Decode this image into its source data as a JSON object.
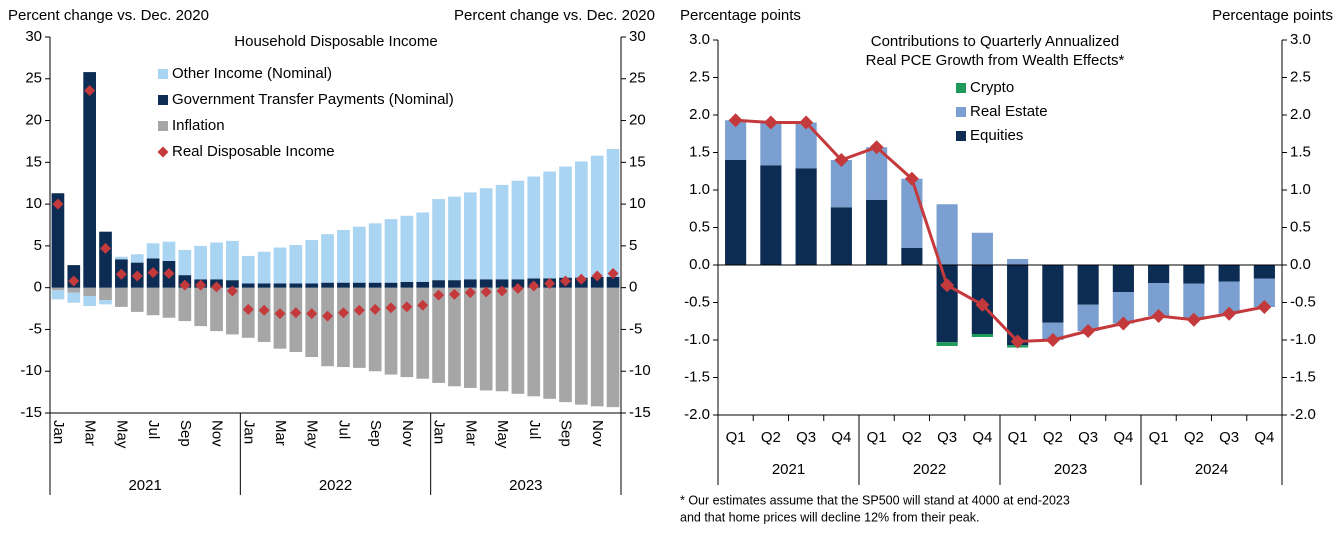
{
  "chart_data": [
    {
      "type": "bar",
      "title": "Household Disposable Income",
      "ylabel": "Percent change vs. Dec. 2020",
      "y2label": "Percent change vs. Dec. 2020",
      "categories": [
        "Jan",
        null,
        "Mar",
        null,
        "May",
        null,
        "Jul",
        null,
        "Sep",
        null,
        "Nov",
        null,
        "Jan",
        null,
        "Mar",
        null,
        "May",
        null,
        "Jul",
        null,
        "Sep",
        null,
        "Nov",
        null,
        "Jan",
        null,
        "Mar",
        null,
        "May",
        null,
        "Jul",
        null,
        "Sep",
        null,
        "Nov",
        null
      ],
      "x_groups": [
        "2021",
        "2022",
        "2023"
      ],
      "ylim": [
        -15,
        30
      ],
      "yticks": [
        -15,
        -10,
        -5,
        0,
        5,
        10,
        15,
        20,
        25,
        30
      ],
      "y2lim": [
        -15,
        30
      ],
      "y2ticks": [
        -15,
        -10,
        -5,
        0,
        5,
        10,
        15,
        20,
        25,
        30
      ],
      "series": [
        {
          "name": "Other Income (Nominal)",
          "color": "#a9d4f2",
          "values": [
            -1.1,
            -1.2,
            -1.2,
            -0.5,
            0.3,
            1.0,
            1.8,
            2.3,
            3.0,
            4.0,
            4.4,
            4.7,
            3.3,
            3.8,
            4.3,
            4.6,
            5.2,
            5.8,
            6.3,
            6.7,
            7.1,
            7.6,
            7.9,
            8.3,
            9.7,
            10.0,
            10.4,
            10.9,
            11.3,
            11.8,
            12.2,
            12.8,
            13.3,
            13.9,
            14.5,
            15.3
          ]
        },
        {
          "name": "Government Transfer Payments (Nominal)",
          "color": "#0c2c54",
          "values": [
            11.3,
            2.7,
            25.8,
            6.7,
            3.4,
            3.0,
            3.5,
            3.2,
            1.5,
            1.0,
            1.0,
            0.9,
            0.5,
            0.5,
            0.5,
            0.5,
            0.5,
            0.6,
            0.6,
            0.6,
            0.6,
            0.6,
            0.7,
            0.7,
            0.9,
            0.9,
            1.0,
            1.0,
            1.0,
            1.0,
            1.1,
            1.1,
            1.2,
            1.2,
            1.3,
            1.3
          ]
        },
        {
          "name": "Inflation",
          "color": "#a6a6a6",
          "values": [
            -0.3,
            -0.6,
            -1.0,
            -1.5,
            -2.3,
            -2.9,
            -3.3,
            -3.6,
            -4.0,
            -4.6,
            -5.2,
            -5.6,
            -6.0,
            -6.5,
            -7.3,
            -7.7,
            -8.3,
            -9.4,
            -9.5,
            -9.6,
            -10.0,
            -10.4,
            -10.7,
            -10.9,
            -11.4,
            -11.8,
            -12.0,
            -12.3,
            -12.4,
            -12.7,
            -13.0,
            -13.3,
            -13.7,
            -14.0,
            -14.2,
            -14.3
          ]
        },
        {
          "name": "Real Disposable Income",
          "color": "#c43a3c",
          "type": "scatter",
          "marker": "diamond",
          "values": [
            10.0,
            0.8,
            23.6,
            4.7,
            1.6,
            1.4,
            1.8,
            1.7,
            0.3,
            0.3,
            0.1,
            -0.4,
            -2.6,
            -2.7,
            -3.1,
            -3.0,
            -3.1,
            -3.4,
            -3.0,
            -2.7,
            -2.6,
            -2.4,
            -2.3,
            -2.1,
            -0.9,
            -0.8,
            -0.6,
            -0.5,
            -0.4,
            -0.1,
            0.2,
            0.5,
            0.8,
            1.0,
            1.4,
            1.7
          ]
        }
      ]
    },
    {
      "type": "bar",
      "title": [
        "Contributions to Quarterly Annualized",
        "Real PCE Growth from Wealth Effects*"
      ],
      "ylabel": "Percentage points",
      "y2label": "Percentage points",
      "categories": [
        "Q1",
        "Q2",
        "Q3",
        "Q4",
        "Q1",
        "Q2",
        "Q3",
        "Q4",
        "Q1",
        "Q2",
        "Q3",
        "Q4",
        "Q1",
        "Q2",
        "Q3",
        "Q4"
      ],
      "x_groups": [
        "2021",
        "2022",
        "2023",
        "2024"
      ],
      "ylim": [
        -2,
        3
      ],
      "yticks": [
        {
          "value": -2,
          "label": "-2.0"
        },
        -1.5,
        {
          "value": -1,
          "label": "-1.0"
        },
        -0.5,
        {
          "value": 0,
          "label": "0.0"
        },
        0.5,
        {
          "value": 1,
          "label": "1.0"
        },
        1.5,
        {
          "value": 2,
          "label": "2.0"
        },
        2.5,
        {
          "value": 3,
          "label": "3.0"
        }
      ],
      "y2lim": [
        -2,
        3
      ],
      "y2ticks": [
        {
          "value": -2,
          "label": "-2.0"
        },
        -1.5,
        {
          "value": -1,
          "label": "-1.0"
        },
        -0.5,
        {
          "value": 0,
          "label": "0.0"
        },
        0.5,
        {
          "value": 1,
          "label": "1.0"
        },
        1.5,
        {
          "value": 2,
          "label": "2.0"
        },
        2.5,
        {
          "value": 3,
          "label": "3.0"
        }
      ],
      "series": [
        {
          "name": "Crypto",
          "color": "#1e9a5b",
          "values": [
            0,
            0,
            0,
            0,
            0,
            0,
            -0.05,
            -0.04,
            -0.03,
            0,
            0,
            0,
            0,
            0,
            0,
            0
          ]
        },
        {
          "name": "Real Estate",
          "color": "#7b9fd0",
          "values": [
            0.53,
            0.57,
            0.61,
            0.63,
            0.7,
            0.92,
            0.81,
            0.43,
            0.08,
            -0.23,
            -0.35,
            -0.42,
            -0.44,
            -0.48,
            -0.43,
            -0.38
          ]
        },
        {
          "name": "Equities",
          "color": "#0c2c54",
          "values": [
            1.4,
            1.33,
            1.29,
            0.77,
            0.87,
            0.23,
            -1.03,
            -0.92,
            -1.07,
            -0.77,
            -0.53,
            -0.36,
            -0.24,
            -0.25,
            -0.22,
            -0.18
          ]
        },
        {
          "color": "#c43a3c",
          "type": "line",
          "marker": "diamond",
          "values": [
            1.93,
            1.9,
            1.9,
            1.4,
            1.57,
            1.15,
            -0.27,
            -0.53,
            -1.02,
            -1.0,
            -0.88,
            -0.78,
            -0.68,
            -0.73,
            -0.65,
            -0.56
          ]
        }
      ],
      "footnote": [
        "* Our estimates assume that the SP500 will stand at 4000 at end-2023",
        "and that home prices will decline 12% from their peak."
      ]
    }
  ]
}
